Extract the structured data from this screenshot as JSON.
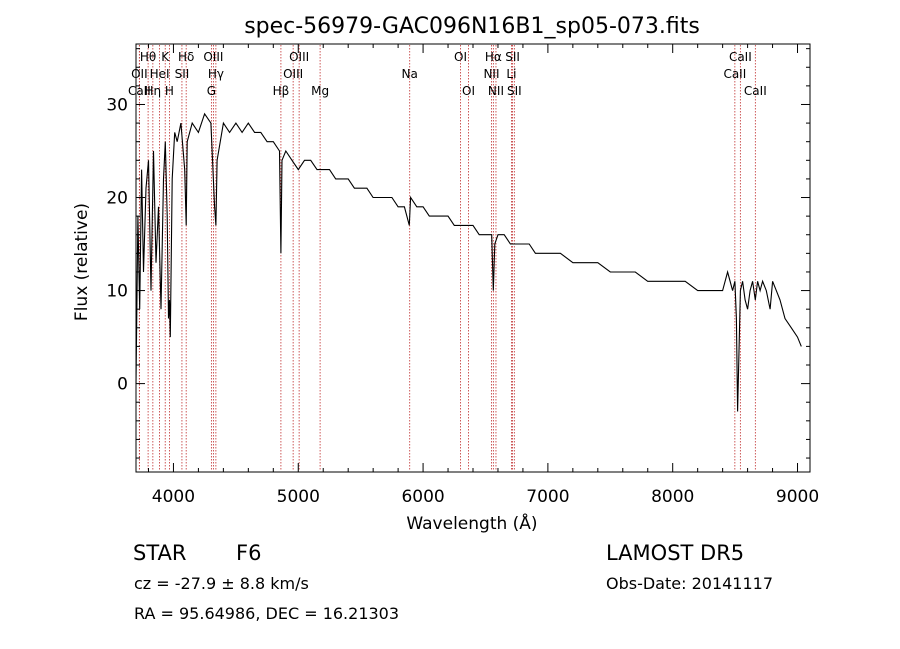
{
  "chart_data": {
    "type": "line",
    "title": "spec-56979-GAC096N16B1_sp05-073.fits",
    "xlabel": "Wavelength (Å)",
    "ylabel": "Flux (relative)",
    "xlim": [
      3700,
      9100
    ],
    "ylim": [
      -9.5,
      36.5
    ],
    "xticks": [
      4000,
      5000,
      6000,
      7000,
      8000,
      9000
    ],
    "yticks": [
      0,
      10,
      20,
      30
    ],
    "series": [
      {
        "color": "#000000",
        "x": [
          3700,
          3715,
          3730,
          3745,
          3760,
          3780,
          3800,
          3820,
          3840,
          3860,
          3880,
          3900,
          3920,
          3935,
          3950,
          3960,
          3968,
          3975,
          3990,
          4010,
          4030,
          4060,
          4090,
          4102,
          4110,
          4150,
          4200,
          4250,
          4300,
          4330,
          4340,
          4350,
          4400,
          4450,
          4500,
          4550,
          4600,
          4650,
          4700,
          4750,
          4800,
          4850,
          4861,
          4870,
          4900,
          4950,
          5000,
          5050,
          5100,
          5150,
          5200,
          5250,
          5300,
          5350,
          5400,
          5450,
          5500,
          5550,
          5600,
          5650,
          5700,
          5750,
          5800,
          5850,
          5890,
          5900,
          5950,
          6000,
          6050,
          6100,
          6150,
          6200,
          6250,
          6300,
          6350,
          6400,
          6450,
          6500,
          6550,
          6563,
          6575,
          6600,
          6650,
          6700,
          6720,
          6750,
          6800,
          6850,
          6900,
          6950,
          7000,
          7100,
          7200,
          7300,
          7400,
          7500,
          7600,
          7700,
          7800,
          7900,
          8000,
          8100,
          8200,
          8300,
          8400,
          8440,
          8460,
          8480,
          8498,
          8510,
          8520,
          8542,
          8560,
          8580,
          8600,
          8620,
          8640,
          8662,
          8680,
          8700,
          8720,
          8750,
          8780,
          8800,
          8830,
          8860,
          8900,
          8950,
          9000,
          9030
        ],
        "y": [
          0,
          18,
          8,
          23,
          12,
          21,
          24,
          10,
          25,
          13,
          19,
          8,
          22,
          26,
          18,
          7,
          9,
          5,
          22,
          27,
          26,
          28,
          23,
          17,
          26,
          28,
          27,
          29,
          28,
          19,
          17,
          24,
          28,
          27,
          28,
          27,
          28,
          27,
          27,
          26,
          26,
          25,
          14,
          24,
          25,
          24,
          23,
          24,
          24,
          23,
          23,
          23,
          22,
          22,
          22,
          21,
          21,
          21,
          20,
          20,
          20,
          20,
          19,
          19,
          17,
          20,
          19,
          19,
          18,
          18,
          18,
          18,
          17,
          17,
          17,
          17,
          16,
          16,
          16,
          10,
          15,
          16,
          16,
          15,
          15,
          15,
          15,
          15,
          14,
          14,
          14,
          14,
          13,
          13,
          13,
          12,
          12,
          12,
          11,
          11,
          11,
          11,
          10,
          10,
          10,
          12,
          11,
          10,
          11,
          7,
          -3,
          10,
          11,
          9,
          8,
          10,
          11,
          9,
          11,
          10,
          11,
          10,
          8,
          11,
          10,
          9,
          7,
          6,
          5,
          4
        ]
      }
    ],
    "lines": [
      {
        "label": "OII",
        "x": 3727,
        "row": 1
      },
      {
        "label": "CaII",
        "x": 3727,
        "row": 2
      },
      {
        "label": "Hθ",
        "x": 3797,
        "row": 0
      },
      {
        "label": "Hη",
        "x": 3835,
        "row": 2
      },
      {
        "label": "HeI",
        "x": 3889,
        "row": 1
      },
      {
        "label": "K",
        "x": 3934,
        "row": 0
      },
      {
        "label": "H",
        "x": 3968,
        "row": 2
      },
      {
        "label": "SII",
        "x": 4068,
        "row": 1
      },
      {
        "label": "Hδ",
        "x": 4102,
        "row": 0
      },
      {
        "label": "OIII",
        "x": 4320,
        "row": 0
      },
      {
        "label": "Hγ",
        "x": 4340,
        "row": 1
      },
      {
        "label": "G",
        "x": 4304,
        "row": 2
      },
      {
        "label": "Hβ",
        "x": 4861,
        "row": 2
      },
      {
        "label": "OIII",
        "x": 5007,
        "row": 0
      },
      {
        "label": "OIII",
        "x": 4959,
        "row": 1
      },
      {
        "label": "Mg",
        "x": 5175,
        "row": 2
      },
      {
        "label": "Na",
        "x": 5893,
        "row": 1
      },
      {
        "label": "OI",
        "x": 6300,
        "row": 0
      },
      {
        "label": "OI",
        "x": 6364,
        "row": 2
      },
      {
        "label": "Hα",
        "x": 6563,
        "row": 0
      },
      {
        "label": "NII",
        "x": 6548,
        "row": 1
      },
      {
        "label": "NII",
        "x": 6584,
        "row": 2
      },
      {
        "label": "SII",
        "x": 6717,
        "row": 0
      },
      {
        "label": "Li",
        "x": 6708,
        "row": 1
      },
      {
        "label": "SII",
        "x": 6731,
        "row": 2
      },
      {
        "label": "CaII",
        "x": 8542,
        "row": 0
      },
      {
        "label": "CaII",
        "x": 8498,
        "row": 1
      },
      {
        "label": "CaII",
        "x": 8662,
        "row": 2
      }
    ]
  },
  "info": {
    "class_label": "STAR",
    "subclass": "F6",
    "release": "LAMOST DR5",
    "velocity": "cz = -27.9 ± 8.8 km/s",
    "obs_date": "Obs-Date: 20141117",
    "coords": "RA =  95.64986, DEC =  16.21303"
  }
}
